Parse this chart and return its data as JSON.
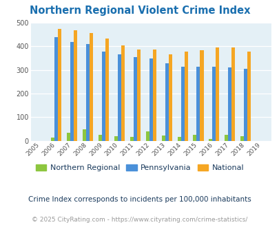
{
  "title": "Northern Regional Violent Crime Index",
  "title_color": "#1a6faf",
  "years": [
    2005,
    2006,
    2007,
    2008,
    2009,
    2010,
    2011,
    2012,
    2013,
    2014,
    2015,
    2016,
    2017,
    2018,
    2019
  ],
  "northern_regional": [
    0,
    12,
    35,
    47,
    24,
    20,
    17,
    40,
    23,
    15,
    25,
    7,
    26,
    20,
    0
  ],
  "pennsylvania": [
    0,
    440,
    417,
    409,
    379,
    365,
    353,
    349,
    328,
    314,
    314,
    314,
    311,
    305,
    0
  ],
  "national": [
    0,
    474,
    468,
    455,
    432,
    405,
    387,
    387,
    365,
    378,
    383,
    396,
    394,
    379,
    0
  ],
  "color_northern": "#8dc63f",
  "color_pennsylvania": "#4a90d9",
  "color_national": "#f5a623",
  "bg_color": "#e4f0f6",
  "ylim": [
    0,
    500
  ],
  "yticks": [
    0,
    100,
    200,
    300,
    400,
    500
  ],
  "subtitle": "Crime Index corresponds to incidents per 100,000 inhabitants",
  "footer": "© 2025 CityRating.com - https://www.cityrating.com/crime-statistics/",
  "subtitle_color": "#1a3a5c",
  "footer_color": "#999999",
  "bar_width": 0.22
}
